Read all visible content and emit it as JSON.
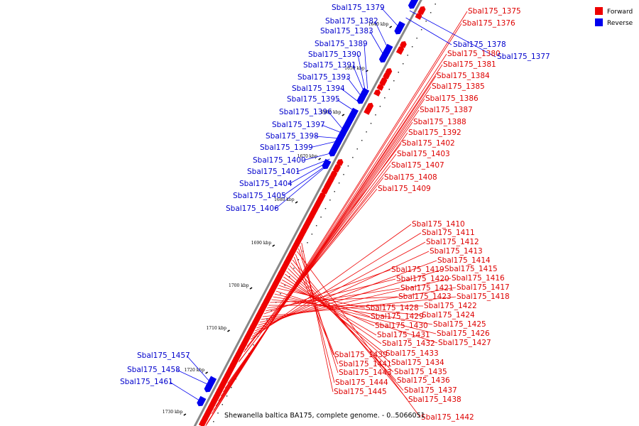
{
  "caption": "Shewanella baltica BA175, complete genome. - 0..5066051",
  "legend": [
    {
      "label": "Forward",
      "color": "#ee0000"
    },
    {
      "label": "Reverse",
      "color": "#0000ee"
    }
  ],
  "colors": {
    "forward": "#ee0000",
    "reverse": "#0000ee",
    "backbone": "#888888",
    "forward_label": "#dd0000",
    "reverse_label": "#0000cc"
  },
  "ticks": [
    "1640 kbp",
    "1650 kbp",
    "1660 kbp",
    "1670 kbp",
    "1680 kbp",
    "1690 kbp",
    "1700 kbp",
    "1710 kbp",
    "1720 kbp",
    "1730 kbp"
  ],
  "forward_genes": [
    "Sbal175_1375",
    "Sbal175_1376",
    "Sbal175_1380",
    "Sbal175_1381",
    "Sbal175_1384",
    "Sbal175_1385",
    "Sbal175_1386",
    "Sbal175_1387",
    "Sbal175_1388",
    "Sbal175_1392",
    "Sbal175_1402",
    "Sbal175_1403",
    "Sbal175_1407",
    "Sbal175_1408",
    "Sbal175_1409",
    "Sbal175_1410",
    "Sbal175_1411",
    "Sbal175_1412",
    "Sbal175_1413",
    "Sbal175_1414",
    "Sbal175_1415",
    "Sbal175_1416",
    "Sbal175_1417",
    "Sbal175_1418",
    "Sbal175_1419",
    "Sbal175_1420",
    "Sbal175_1421",
    "Sbal175_1422",
    "Sbal175_1423",
    "Sbal175_1424",
    "Sbal175_1425",
    "Sbal175_1426",
    "Sbal175_1427",
    "Sbal175_1428",
    "Sbal175_1429",
    "Sbal175_1430",
    "Sbal175_1431",
    "Sbal175_1432",
    "Sbal175_1433",
    "Sbal175_1434",
    "Sbal175_1435",
    "Sbal175_1436",
    "Sbal175_1437",
    "Sbal175_1438",
    "Sbal175_1439",
    "Sbal175_1441",
    "Sbal175_1442",
    "Sbal175_1443",
    "Sbal175_1444",
    "Sbal175_1445"
  ],
  "reverse_genes": [
    "Sbal175_1377",
    "Sbal175_1378",
    "Sbal175_1379",
    "Sbal175_1382",
    "Sbal175_1383",
    "Sbal175_1389",
    "Sbal175_1390",
    "Sbal175_1391",
    "Sbal175_1393",
    "Sbal175_1394",
    "Sbal175_1395",
    "Sbal175_1396",
    "Sbal175_1397",
    "Sbal175_1398",
    "Sbal175_1399",
    "Sbal175_1400",
    "Sbal175_1401",
    "Sbal175_1404",
    "Sbal175_1405",
    "Sbal175_1406",
    "Sbal175_1457",
    "Sbal175_1458",
    "Sbal175_1461"
  ]
}
